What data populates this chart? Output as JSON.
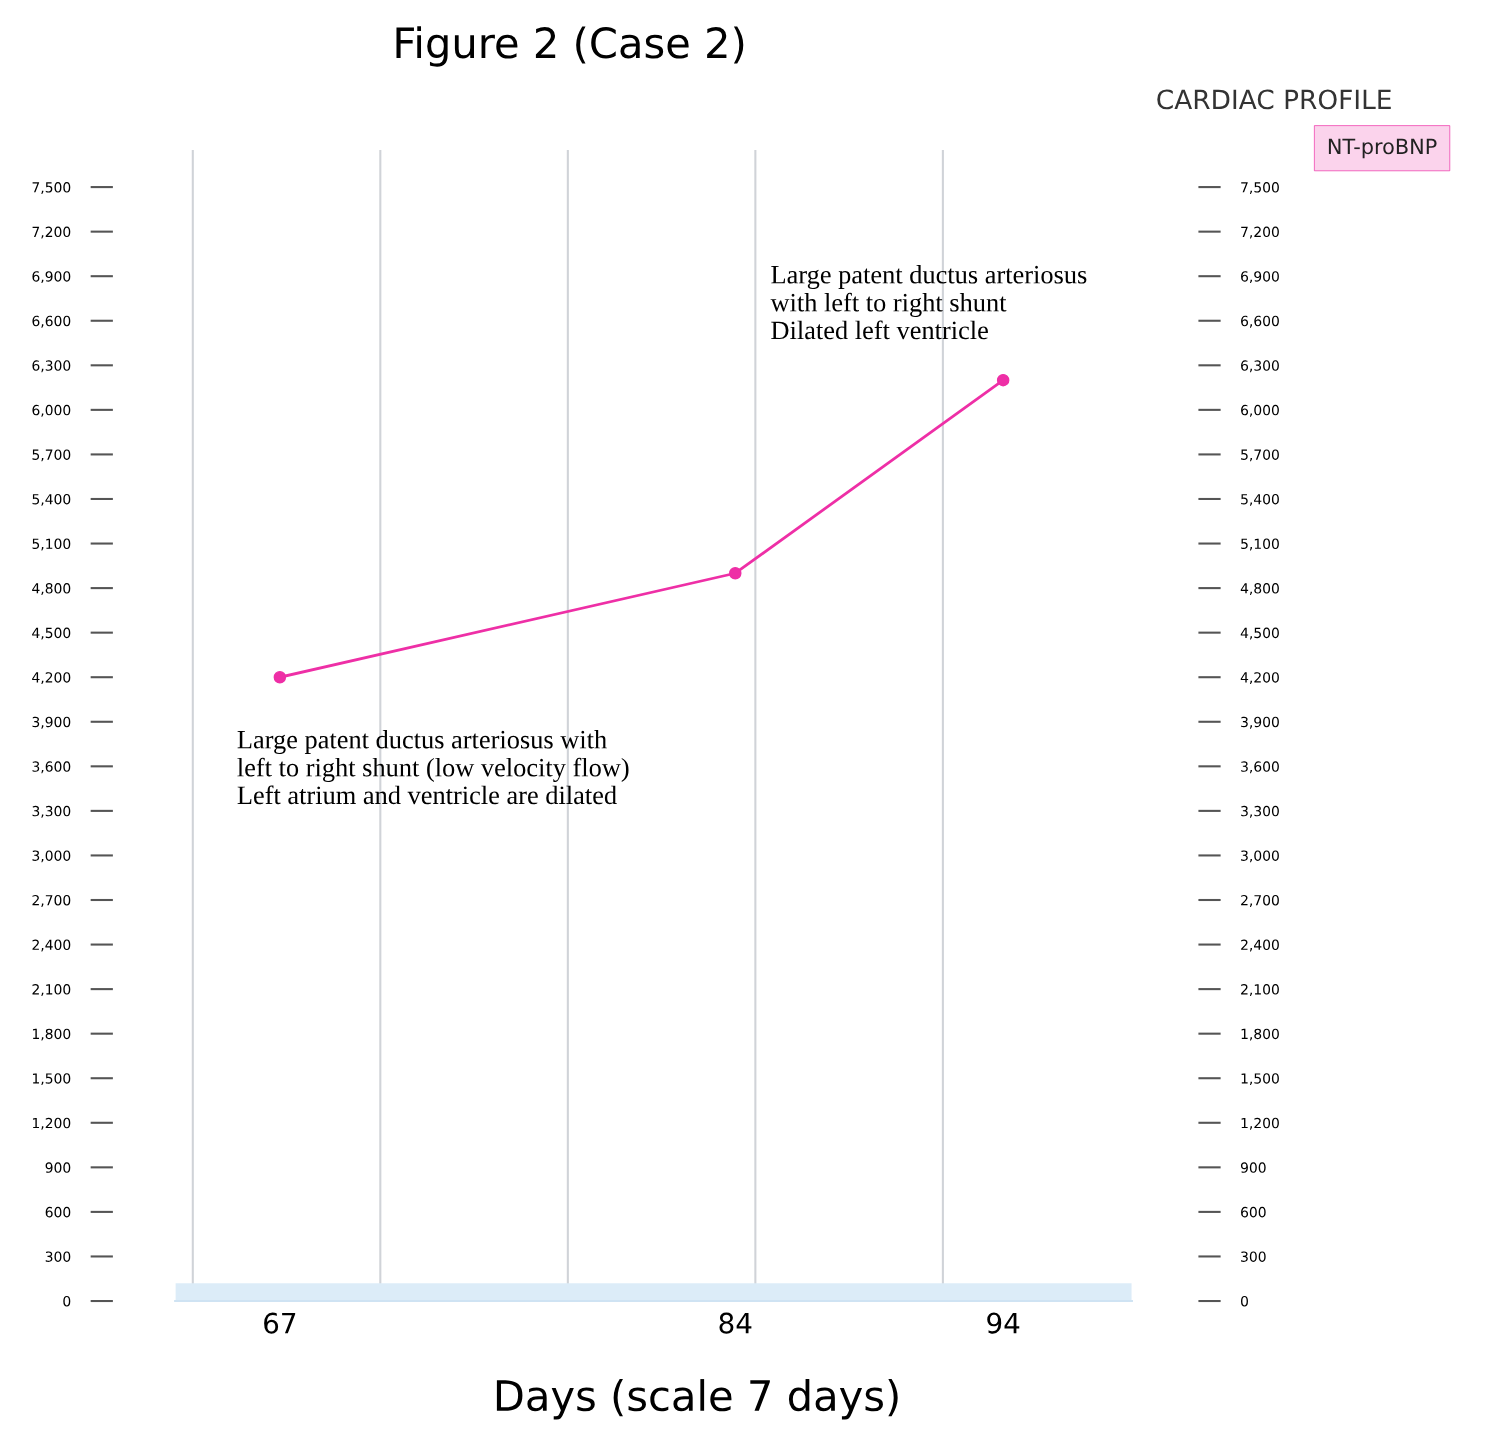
{
  "chart_data": {
    "type": "line",
    "title": "Figure 2 (Case 2)",
    "xlabel": "Days (scale 7 days)",
    "legend_title": "CARDIAC PROFILE",
    "legend": "top right",
    "x": [
      67,
      84,
      94
    ],
    "series": [
      {
        "name": "NT-proBNP",
        "color": "#ee2fa6",
        "values": [
          4200,
          4900,
          6200
        ]
      }
    ],
    "marker": "circle",
    "line_style": "solid",
    "grid": "x",
    "xlim": [
      63.1,
      98.8
    ],
    "xticks": [
      67,
      84,
      94,
      {
        "value": 63.75,
        "label": null
      },
      {
        "value": 70.75,
        "label": null
      },
      {
        "value": 77.75,
        "label": null
      },
      {
        "value": 84.75,
        "label": null
      },
      {
        "value": 91.75,
        "label": null
      }
    ],
    "ylim": [
      0,
      7750
    ],
    "yticks": [
      {
        "value": 0,
        "label": "0"
      },
      {
        "value": 300,
        "label": "300"
      },
      {
        "value": 600,
        "label": "600"
      },
      {
        "value": 900,
        "label": "900"
      },
      {
        "value": 1200,
        "label": "1,200"
      },
      {
        "value": 1500,
        "label": "1,500"
      },
      {
        "value": 1800,
        "label": "1,800"
      },
      {
        "value": 2100,
        "label": "2,100"
      },
      {
        "value": 2400,
        "label": "2,400"
      },
      {
        "value": 2700,
        "label": "2,700"
      },
      {
        "value": 3000,
        "label": "3,000"
      },
      {
        "value": 3300,
        "label": "3,300"
      },
      {
        "value": 3600,
        "label": "3,600"
      },
      {
        "value": 3900,
        "label": "3,900"
      },
      {
        "value": 4200,
        "label": "4,200"
      },
      {
        "value": 4500,
        "label": "4,500"
      },
      {
        "value": 4800,
        "label": "4,800"
      },
      {
        "value": 5100,
        "label": "5,100"
      },
      {
        "value": 5400,
        "label": "5,400"
      },
      {
        "value": 5700,
        "label": "5,700"
      },
      {
        "value": 6000,
        "label": "6,000"
      },
      {
        "value": 6300,
        "label": "6,300"
      },
      {
        "value": 6600,
        "label": "6,600"
      },
      {
        "value": 6900,
        "label": "6,900"
      },
      {
        "value": 7200,
        "label": "7,200"
      },
      {
        "value": 7500,
        "label": "7,500"
      }
    ],
    "y2lim": [
      0,
      7750
    ],
    "y2ticks": [
      {
        "value": 0,
        "label": "0"
      },
      {
        "value": 300,
        "label": "300"
      },
      {
        "value": 600,
        "label": "600"
      },
      {
        "value": 900,
        "label": "900"
      },
      {
        "value": 1200,
        "label": "1,200"
      },
      {
        "value": 1500,
        "label": "1,500"
      },
      {
        "value": 1800,
        "label": "1,800"
      },
      {
        "value": 2100,
        "label": "2,100"
      },
      {
        "value": 2400,
        "label": "2,400"
      },
      {
        "value": 2700,
        "label": "2,700"
      },
      {
        "value": 3000,
        "label": "3,000"
      },
      {
        "value": 3300,
        "label": "3,300"
      },
      {
        "value": 3600,
        "label": "3,600"
      },
      {
        "value": 3900,
        "label": "3,900"
      },
      {
        "value": 4200,
        "label": "4,200"
      },
      {
        "value": 4500,
        "label": "4,500"
      },
      {
        "value": 4800,
        "label": "4,800"
      },
      {
        "value": 5100,
        "label": "5,100"
      },
      {
        "value": 5400,
        "label": "5,400"
      },
      {
        "value": 5700,
        "label": "5,700"
      },
      {
        "value": 6000,
        "label": "6,000"
      },
      {
        "value": 6300,
        "label": "6,300"
      },
      {
        "value": 6600,
        "label": "6,600"
      },
      {
        "value": 6900,
        "label": "6,900"
      },
      {
        "value": 7200,
        "label": "7,200"
      },
      {
        "value": 7500,
        "label": "7,500"
      }
    ],
    "bands": [
      {
        "axis": "y",
        "from": 0,
        "to": 120,
        "color": "#dcecf8"
      }
    ],
    "annotations": [
      "Large patent ductus arteriosus with\nleft to right shunt (low velocity flow)\nLeft atrium and ventricle are dilated",
      "Large patent ductus arteriosus\nwith left to right shunt\nDilated left ventricle"
    ]
  }
}
